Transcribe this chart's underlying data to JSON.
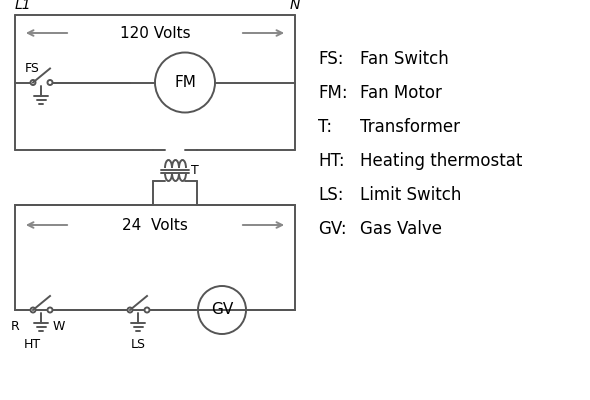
{
  "bg_color": "#ffffff",
  "line_color": "#555555",
  "arrow_color": "#888888",
  "text_color": "#000000",
  "legend_items": [
    [
      "FS:",
      "Fan Switch"
    ],
    [
      "FM:",
      "Fan Motor"
    ],
    [
      "T:",
      "Transformer"
    ],
    [
      "HT:",
      "Heating thermostat"
    ],
    [
      "LS:",
      "Limit Switch"
    ],
    [
      "GV:",
      "Gas Valve"
    ]
  ],
  "L1_label": "L1",
  "N_label": "N",
  "volts120_label": "120 Volts",
  "volts24_label": "24  Volts",
  "T_label": "T",
  "R_label": "R",
  "W_label": "W",
  "HT_label": "HT",
  "LS_label": "LS",
  "FS_label": "FS",
  "FM_label": "FM",
  "GV_label": "GV"
}
